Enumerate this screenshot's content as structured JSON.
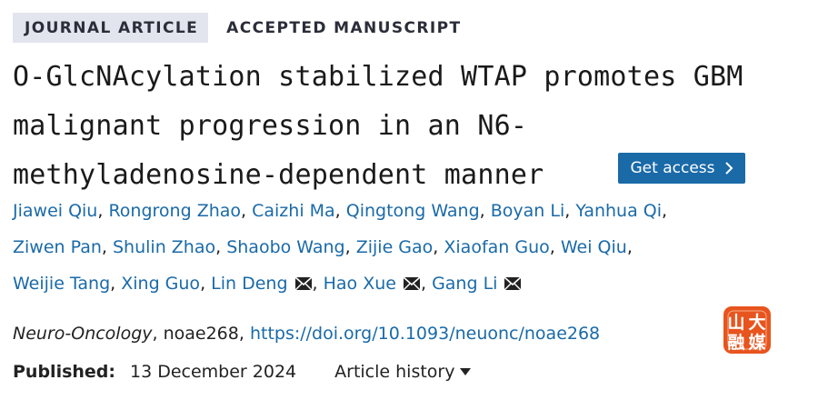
{
  "tags": {
    "journal_article": "JOURNAL ARTICLE",
    "accepted": "ACCEPTED MANUSCRIPT"
  },
  "title_lines": [
    "O-GlcNAcylation stabilized WTAP promotes GBM",
    "malignant progression in an N6-",
    "methyladenosine-dependent manner"
  ],
  "access_button": {
    "label": "Get access",
    "color": "#1a6aa8"
  },
  "authors": [
    "Jiawei Qiu",
    "Rongrong Zhao",
    "Caizhi Ma",
    "Qingtong Wang",
    "Boyan Li",
    "Yanhua Qi",
    "Ziwen Pan",
    "Shulin Zhao",
    "Shaobo Wang",
    "Zijie Gao",
    "Xiaofan Guo",
    "Wei Qiu",
    "Weijie Tang",
    "Xing Guo",
    "Lin Deng",
    "Hao Xue",
    "Gang Li"
  ],
  "author_sep": ",",
  "corresponding_icon": "envelope-icon",
  "citation": {
    "journal": "Neuro-Oncology",
    "article_id": ", noae268, ",
    "doi": "https://doi.org/10.1093/neuonc/noae268"
  },
  "logo": {
    "chars": [
      "山",
      "大",
      "融",
      "媒"
    ],
    "color": "#e8541e"
  },
  "published": {
    "label": "Published:",
    "date": "13 December 2024"
  },
  "history": {
    "label": "Article history",
    "icon": "caret-down-icon"
  },
  "link_color": "#1a6aa8"
}
